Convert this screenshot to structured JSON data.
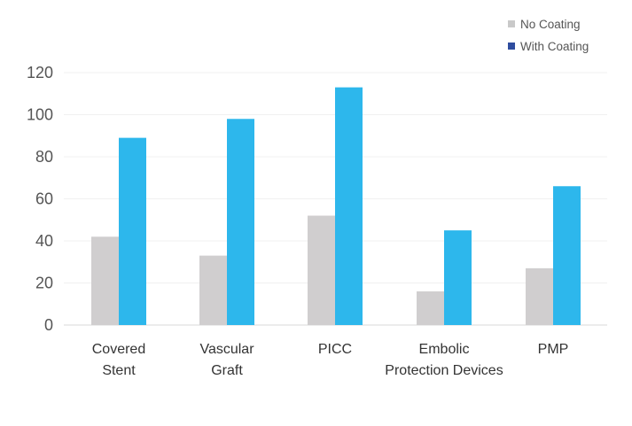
{
  "chart_data": {
    "type": "bar",
    "title": "",
    "xlabel": "",
    "ylabel": "",
    "ylim": [
      0,
      120
    ],
    "yticks": [
      0,
      20,
      40,
      60,
      80,
      100,
      120
    ],
    "grid": true,
    "legend_position": "top-right",
    "categories": [
      [
        "Covered",
        "Stent"
      ],
      [
        "Vascular",
        "Graft"
      ],
      [
        "PICC"
      ],
      [
        "Embolic",
        "Protection Devices"
      ],
      [
        "PMP"
      ]
    ],
    "series": [
      {
        "name": "No Coating",
        "color": "#d0cecf",
        "legend_color": "#c9c9c9",
        "values": [
          42,
          33,
          52,
          16,
          27
        ]
      },
      {
        "name": "With Coating",
        "color": "#2db7ec",
        "legend_color": "#2f4d9f",
        "values": [
          89,
          98,
          113,
          45,
          66
        ]
      }
    ]
  }
}
